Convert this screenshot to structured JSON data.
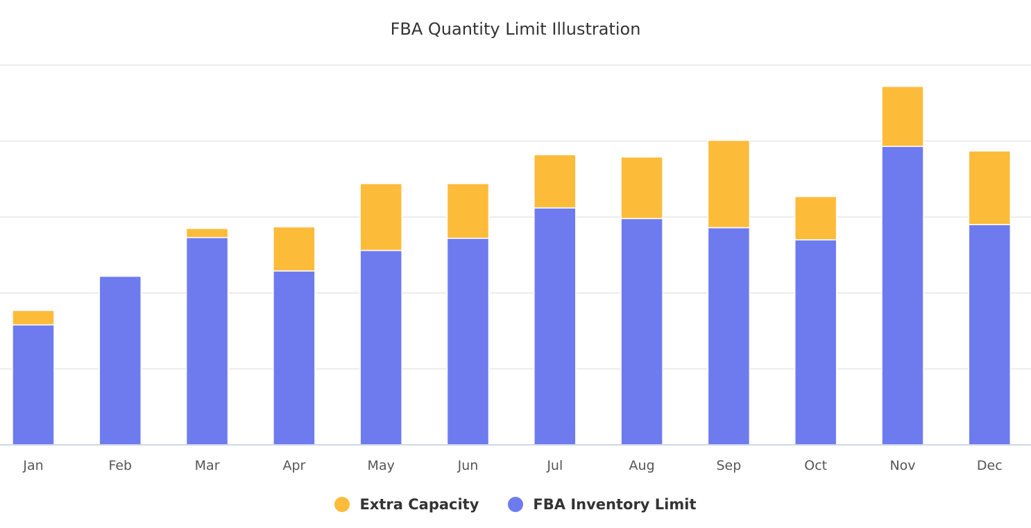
{
  "chart_data": {
    "type": "bar",
    "stacked": true,
    "title": "FBA Quantity Limit Illustration",
    "xlabel": "",
    "ylabel": "",
    "categories": [
      "Jan",
      "Feb",
      "Mar",
      "Apr",
      "May",
      "Jun",
      "Jul",
      "Aug",
      "Sep",
      "Oct",
      "Nov",
      "Dec"
    ],
    "series": [
      {
        "name": "FBA Inventory Limit",
        "color": "#6e7bef",
        "values": [
          158,
          222,
          273,
          229,
          256,
          272,
          312,
          298,
          286,
          270,
          393,
          290
        ]
      },
      {
        "name": "Extra Capacity",
        "color": "#fdbb3a",
        "values": [
          19,
          0,
          12,
          58,
          88,
          72,
          70,
          81,
          115,
          57,
          79,
          97
        ]
      }
    ],
    "ylim": [
      0,
      500
    ],
    "y_gridlines": [
      100,
      200,
      300,
      400,
      500
    ],
    "y_tick_labels_visible": false,
    "grid": true,
    "legend_placement": "bottom-center"
  }
}
